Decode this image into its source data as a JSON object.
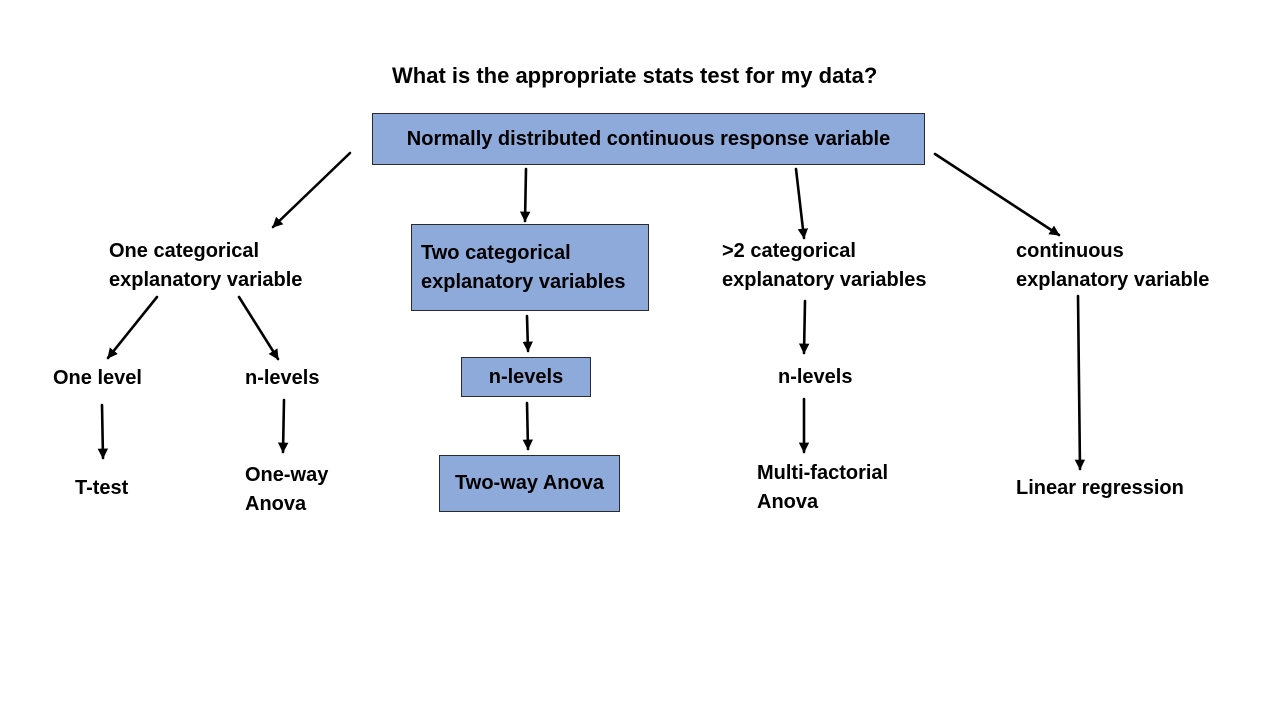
{
  "title": "What is the appropriate stats test for my data?",
  "box_color": "#8eaadb",
  "root": "Normally distributed continuous response variable",
  "branches": {
    "one_cat": {
      "label_line1": "One categorical",
      "label_line2": "explanatory variable",
      "one_level": {
        "label": "One level",
        "test": "T-test"
      },
      "n_levels": {
        "label": "n-levels",
        "test_line1": "One-way",
        "test_line2": "Anova"
      }
    },
    "two_cat": {
      "label_line1": "Two categorical",
      "label_line2": "explanatory variables",
      "levels": "n-levels",
      "test": "Two-way Anova"
    },
    "multi_cat": {
      "label_line1": ">2 categorical",
      "label_line2": "explanatory variables",
      "levels": "n-levels",
      "test_line1": "Multi-factorial",
      "test_line2": "Anova"
    },
    "continuous": {
      "label_line1": "continuous",
      "label_line2": "explanatory variable",
      "test": "Linear regression"
    }
  }
}
